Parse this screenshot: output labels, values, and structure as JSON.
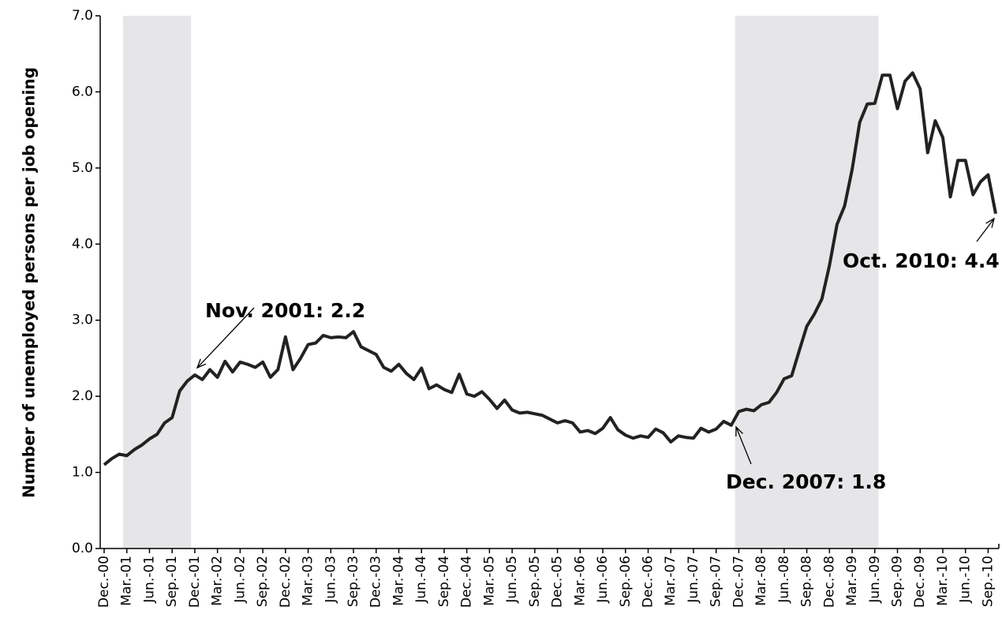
{
  "chart_data": {
    "type": "line",
    "y_label": "Number of unemployed persons per job opening",
    "categories": [
      "Dec.-00",
      null,
      null,
      "Mar.-01",
      null,
      null,
      "Jun.-01",
      null,
      null,
      "Sep.-01",
      null,
      null,
      "Dec.-01",
      null,
      null,
      "Mar.-02",
      null,
      null,
      "Jun.-02",
      null,
      null,
      "Sep.-02",
      null,
      null,
      "Dec.-02",
      null,
      null,
      "Mar.-03",
      null,
      null,
      "Jun.-03",
      null,
      null,
      "Sep.-03",
      null,
      null,
      "Dec.-03",
      null,
      null,
      "Mar.-04",
      null,
      null,
      "Jun.-04",
      null,
      null,
      "Sep.-04",
      null,
      null,
      "Dec.-04",
      null,
      null,
      "Mar.-05",
      null,
      null,
      "Jun.-05",
      null,
      null,
      "Sep.-05",
      null,
      null,
      "Dec.-05",
      null,
      null,
      "Mar.-06",
      null,
      null,
      "Jun.-06",
      null,
      null,
      "Sep.-06",
      null,
      null,
      "Dec.-06",
      null,
      null,
      "Mar.-07",
      null,
      null,
      "Jun.-07",
      null,
      null,
      "Sep.-07",
      null,
      null,
      "Dec.-07",
      null,
      null,
      "Mar.-08",
      null,
      null,
      "Jun.-08",
      null,
      null,
      "Sep.-08",
      null,
      null,
      "Dec.-08",
      null,
      null,
      "Mar.-09",
      null,
      null,
      "Jun.-09",
      null,
      null,
      "Sep.-09",
      null,
      null,
      "Dec.-09",
      null,
      null,
      "Mar.-10",
      null,
      null,
      "Jun.-10",
      null,
      null,
      "Sep.-10",
      null
    ],
    "values": [
      1.1,
      1.18,
      1.24,
      1.22,
      1.3,
      1.36,
      1.44,
      1.5,
      1.65,
      1.72,
      2.07,
      2.2,
      2.28,
      2.22,
      2.35,
      2.25,
      2.46,
      2.32,
      2.45,
      2.42,
      2.38,
      2.45,
      2.25,
      2.35,
      2.78,
      2.35,
      2.5,
      2.68,
      2.7,
      2.8,
      2.77,
      2.78,
      2.77,
      2.85,
      2.65,
      2.6,
      2.55,
      2.38,
      2.33,
      2.42,
      2.3,
      2.22,
      2.37,
      2.1,
      2.15,
      2.09,
      2.05,
      2.29,
      2.03,
      2.0,
      2.06,
      1.96,
      1.84,
      1.95,
      1.82,
      1.78,
      1.79,
      1.77,
      1.75,
      1.7,
      1.65,
      1.68,
      1.65,
      1.53,
      1.55,
      1.51,
      1.58,
      1.72,
      1.56,
      1.49,
      1.45,
      1.48,
      1.46,
      1.57,
      1.52,
      1.4,
      1.48,
      1.46,
      1.45,
      1.58,
      1.53,
      1.57,
      1.67,
      1.62,
      1.8,
      1.83,
      1.81,
      1.89,
      1.92,
      2.05,
      2.23,
      2.27,
      2.6,
      2.92,
      3.08,
      3.28,
      3.72,
      4.26,
      4.5,
      4.98,
      5.6,
      5.84,
      5.85,
      6.22,
      6.22,
      5.78,
      6.14,
      6.25,
      6.04,
      5.2,
      5.62,
      5.4,
      4.62,
      5.1,
      5.1,
      4.65,
      4.82,
      4.91,
      4.4
    ],
    "color": "#222222",
    "shading_color": "#e6e6e8",
    "recessions": [
      [
        3,
        11
      ],
      [
        84,
        102
      ]
    ],
    "ylim": [
      0,
      7
    ],
    "yticks": [
      {
        "value": 0,
        "label": "0.0"
      },
      {
        "value": 1,
        "label": "1.0"
      },
      {
        "value": 2,
        "label": "2.0"
      },
      {
        "value": 3,
        "label": "3.0"
      },
      {
        "value": 4,
        "label": "4.0"
      },
      {
        "value": 5,
        "label": "5.0"
      },
      {
        "value": 6,
        "label": "6.0"
      },
      {
        "value": 7,
        "label": "7.0"
      }
    ],
    "annotations": [
      "Nov. 2001: 2.2",
      "Dec. 2007: 1.8",
      "Oct. 2010: 4.4"
    ]
  }
}
